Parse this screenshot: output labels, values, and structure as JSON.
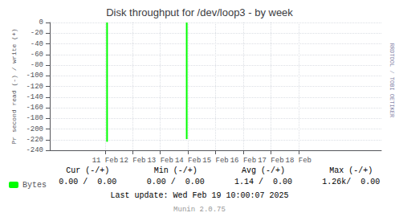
{
  "chart_data": {
    "type": "bar",
    "title": "Disk throughput for /dev/loop3 - by week",
    "ylabel": "Pr second read (-) / write (+)",
    "x": [
      1707616000,
      1707865000
    ],
    "series": [
      {
        "name": "Bytes",
        "color": "#00ff00",
        "values": [
          -224,
          -219
        ]
      }
    ],
    "xlim": [
      1707436800,
      1708473600
    ],
    "xticks": [
      {
        "value": 1707609600,
        "label": "11 Feb"
      },
      {
        "value": 1707696000,
        "label": "12 Feb"
      },
      {
        "value": 1707782400,
        "label": "13 Feb"
      },
      {
        "value": 1707868800,
        "label": "14 Feb"
      },
      {
        "value": 1707955200,
        "label": "15 Feb"
      },
      {
        "value": 1708041600,
        "label": "16 Feb"
      },
      {
        "value": 1708128000,
        "label": "17 Feb"
      },
      {
        "value": 1708214400,
        "label": "18 Feb"
      }
    ],
    "ylim": [
      -240,
      0
    ],
    "yticks": [
      0,
      -20,
      -40,
      -60,
      -80,
      -100,
      -120,
      -140,
      -160,
      -180,
      -200,
      -220,
      -240
    ],
    "grid": true,
    "legend": "lower left",
    "annotations": [
      "Cur (-/+)",
      "Min (-/+)",
      "Avg (-/+)",
      "Max (-/+)",
      "0.00 /  0.00",
      "0.00 /  0.00",
      "1.14 /  0.00",
      "1.26k/  0.00",
      "Last update: Wed Feb 19 10:00:07 2025",
      "Munin 2.0.75",
      "RRDTOOL / TOBI OETIKER"
    ]
  }
}
